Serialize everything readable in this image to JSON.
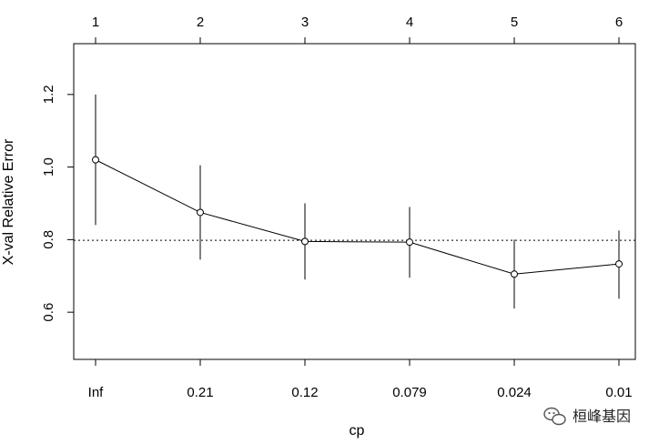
{
  "chart_data": {
    "type": "line",
    "title": "",
    "xlabel": "cp",
    "ylabel": "X-val Relative Error",
    "categories": [
      "Inf",
      "0.21",
      "0.12",
      "0.079",
      "0.024",
      "0.01"
    ],
    "top_axis_labels": [
      "1",
      "2",
      "3",
      "4",
      "5",
      "6"
    ],
    "series": [
      {
        "values": [
          1.02,
          0.875,
          0.795,
          0.793,
          0.705,
          0.733
        ],
        "error_low": [
          0.84,
          0.745,
          0.69,
          0.695,
          0.61,
          0.637
        ],
        "error_high": [
          1.2,
          1.005,
          0.9,
          0.89,
          0.8,
          0.825
        ]
      }
    ],
    "reference_line": 0.798,
    "yticks": [
      0.6,
      0.8,
      1.0,
      1.2
    ],
    "ytick_labels": [
      "0.6",
      "0.8",
      "1.0",
      "1.2"
    ],
    "ylim": [
      0.47,
      1.34
    ],
    "grid": false
  },
  "watermark": {
    "text": "桓峰基因",
    "icon": "wechat-icon"
  }
}
